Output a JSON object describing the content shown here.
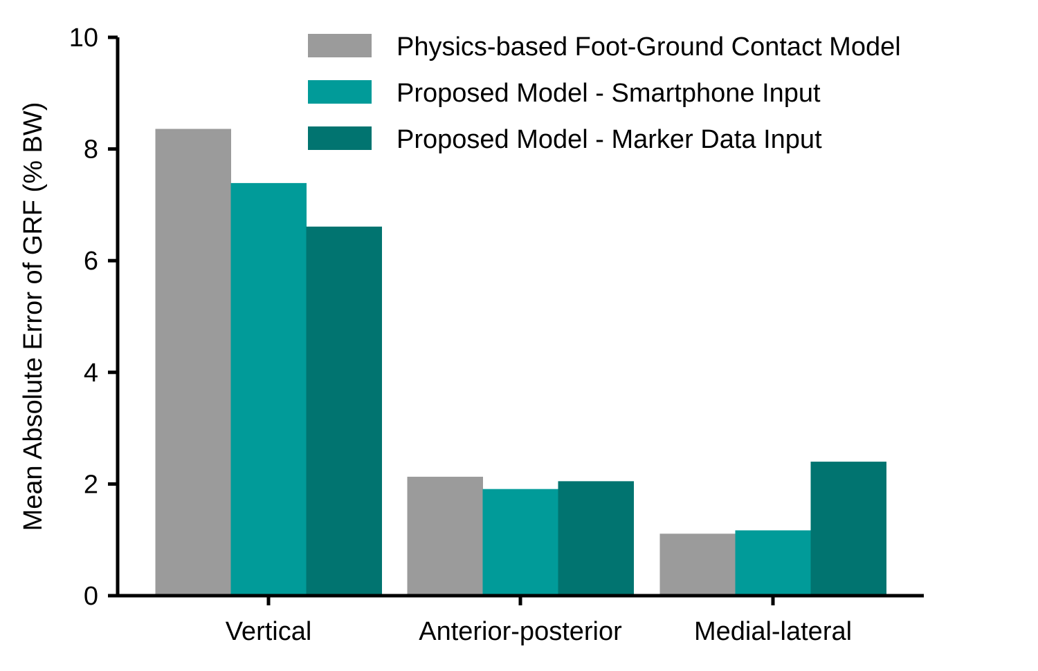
{
  "chart_data": {
    "type": "bar",
    "title": "",
    "xlabel": "",
    "ylabel": "Mean Absolute Error of GRF (% BW)",
    "ylim": [
      0,
      10
    ],
    "yticks": [
      "0",
      "2",
      "4",
      "6",
      "8",
      "10"
    ],
    "grid": false,
    "legend_position": "top-right",
    "categories": [
      "Vertical",
      "Anterior-posterior",
      "Medial-lateral"
    ],
    "series": [
      {
        "name": "Physics-based Foot-Ground Contact Model",
        "color": "#9b9b9b",
        "values": [
          8.36,
          2.13,
          1.11
        ]
      },
      {
        "name": "Proposed Model - Smartphone Input",
        "color": "#019b99",
        "values": [
          7.39,
          1.91,
          1.17
        ]
      },
      {
        "name": "Proposed Model - Marker Data Input",
        "color": "#017470",
        "values": [
          6.61,
          2.05,
          2.4
        ]
      }
    ]
  }
}
